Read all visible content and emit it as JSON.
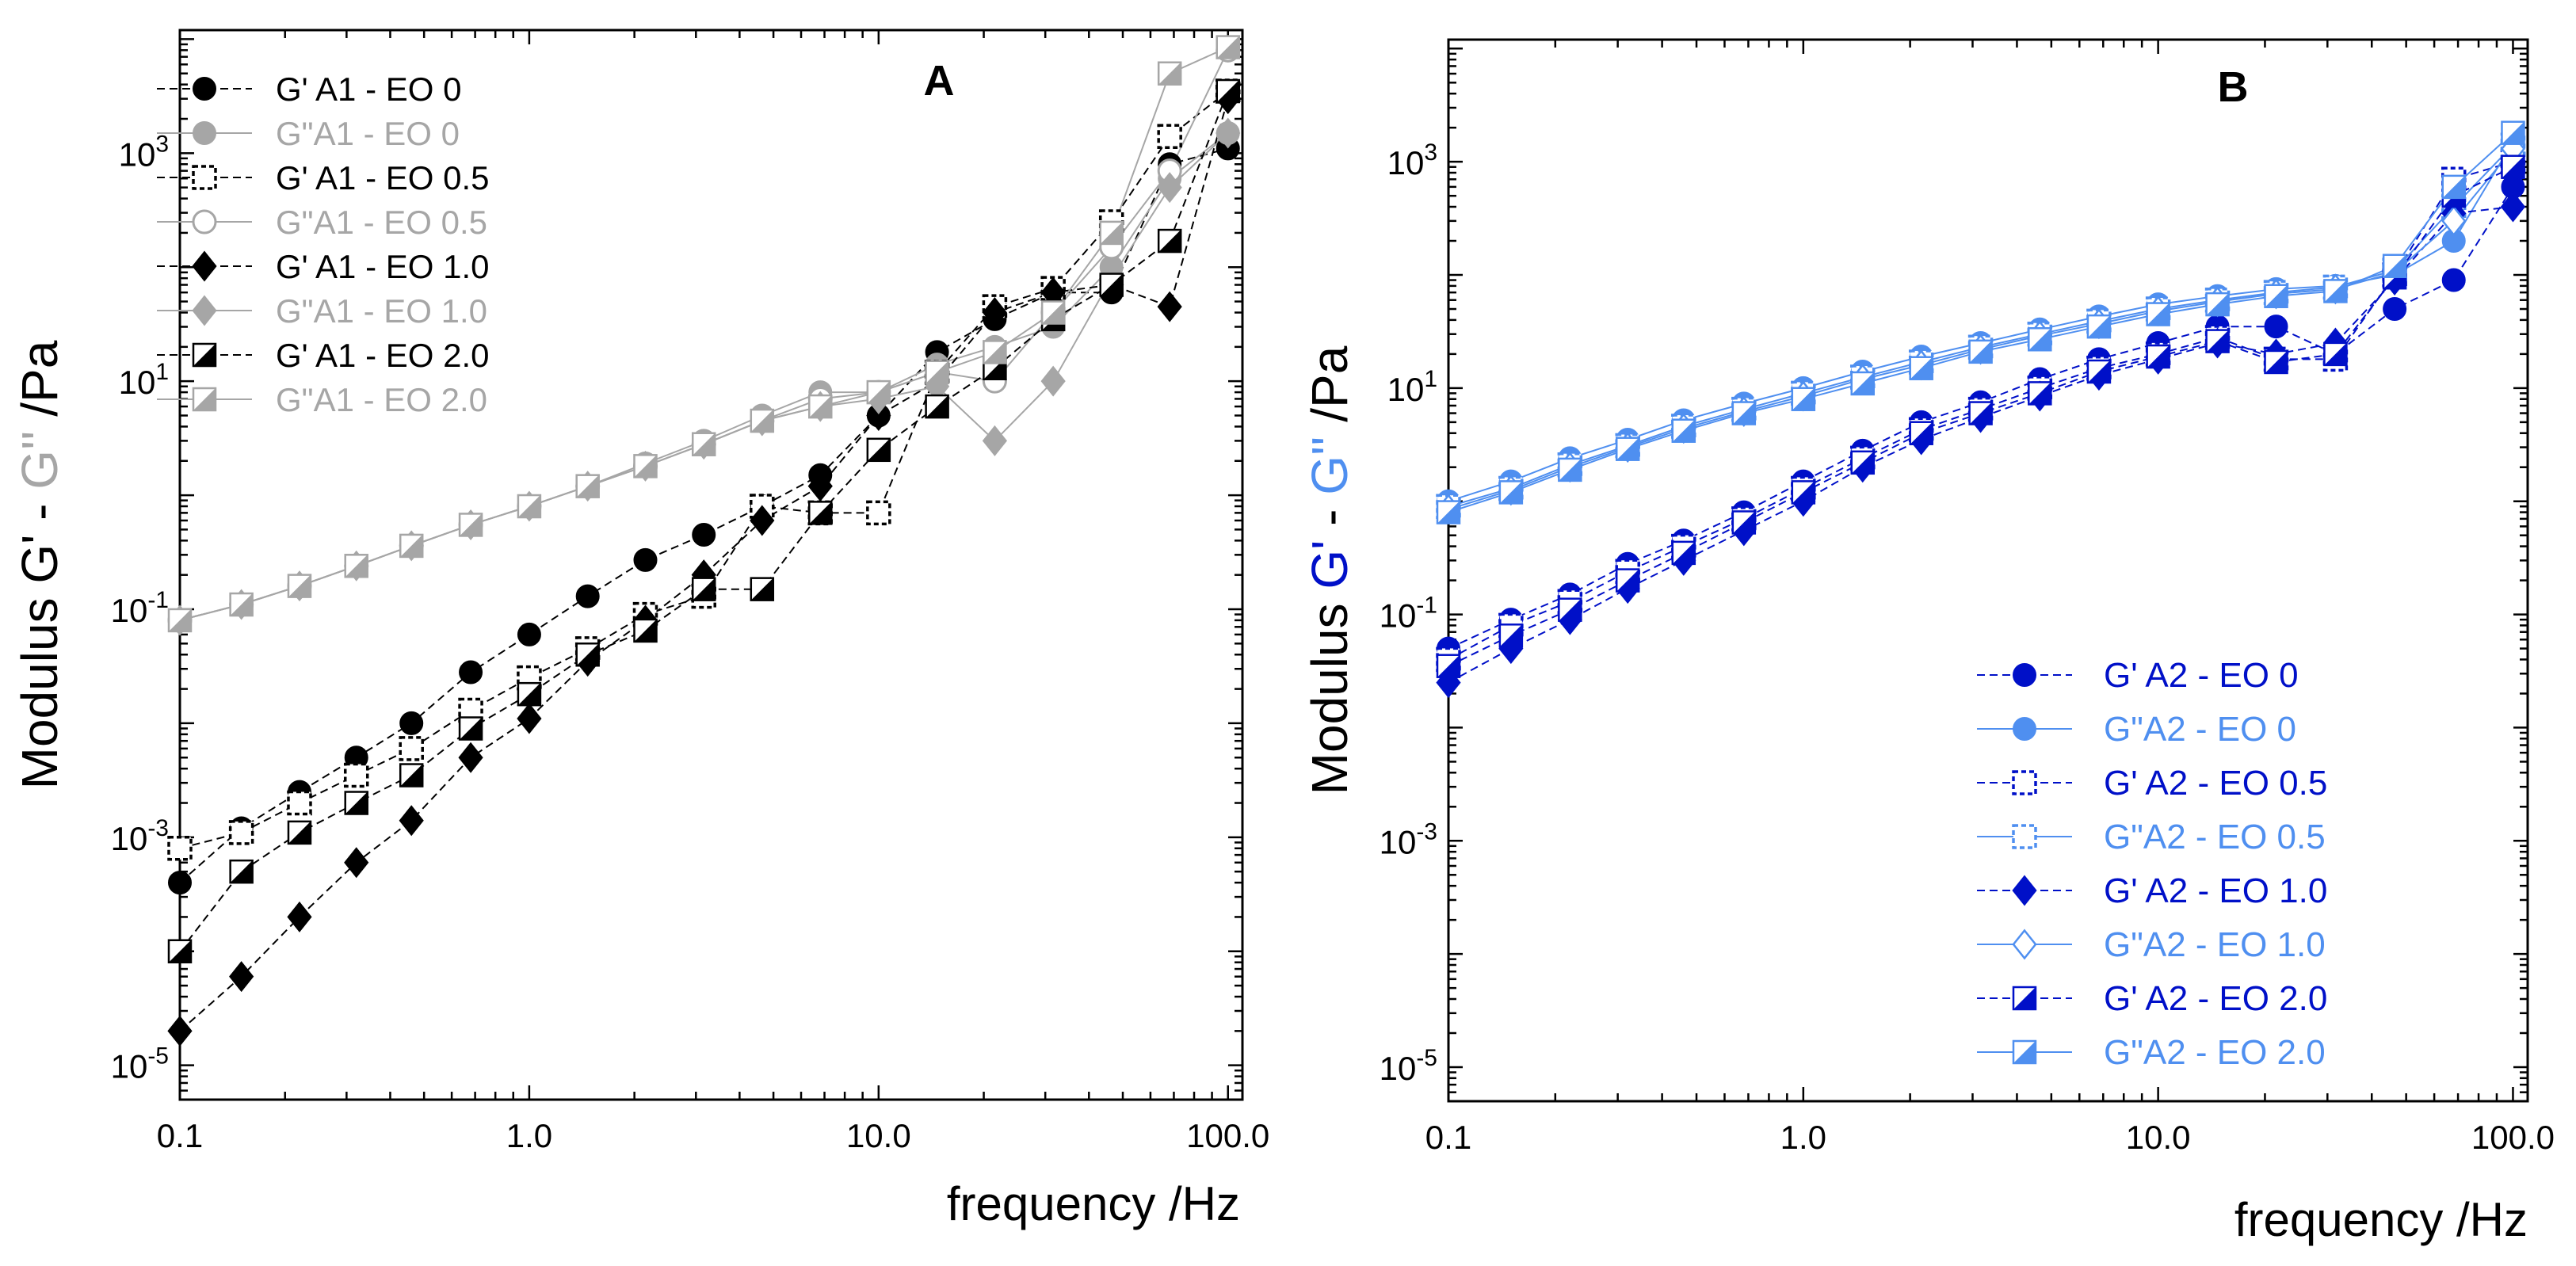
{
  "colors": {
    "black": "#000000",
    "gray": "#a6a6a6",
    "blue_dark": "#0010c8",
    "blue_light": "#4f8ff0"
  },
  "chart_data": [
    {
      "panel": "A",
      "type": "line",
      "scale": "log-log",
      "ylabel_parts": [
        "Modulus G'",
        " - ",
        "G''",
        " /Pa"
      ],
      "ylabel_colors": [
        "#000000",
        "#000000",
        "#a6a6a6",
        "#000000"
      ],
      "xlabel": "frequency /Hz",
      "xlim": [
        0.1,
        110
      ],
      "ylim": [
        5e-06,
        12000
      ],
      "x_ticks": [
        0.1,
        1,
        10,
        100
      ],
      "x_tick_labels": [
        "0.1",
        "1.0",
        "10.0",
        "100.0"
      ],
      "y_ticks": [
        1e-05,
        0.001,
        0.1,
        10,
        1000
      ],
      "y_tick_labels": [
        [
          "10",
          "-5"
        ],
        [
          "10",
          "-3"
        ],
        [
          "10",
          "-1"
        ],
        [
          "10",
          "1"
        ],
        [
          "10",
          "3"
        ]
      ],
      "legend_position": "top-left",
      "series": [
        {
          "name": "G' A1 - EO 0",
          "color": "#000000",
          "marker": "circle-filled",
          "dashed": true,
          "x": [
            0.1,
            0.15,
            0.22,
            0.32,
            0.46,
            0.68,
            1.0,
            1.47,
            2.15,
            3.16,
            4.64,
            6.81,
            10.0,
            14.7,
            21.5,
            31.6,
            46.4,
            68.1,
            100
          ],
          "y": [
            0.0004,
            0.0012,
            0.0025,
            0.005,
            0.01,
            0.028,
            0.06,
            0.13,
            0.27,
            0.45,
            0.8,
            1.5,
            5,
            18,
            35,
            60,
            60,
            800,
            1100
          ]
        },
        {
          "name": "G\"A1 - EO 0",
          "color": "#a6a6a6",
          "marker": "circle-filled",
          "dashed": false,
          "x": [
            0.1,
            0.15,
            0.22,
            0.32,
            0.46,
            0.68,
            1.0,
            1.47,
            2.15,
            3.16,
            4.64,
            6.81,
            10.0,
            14.7,
            21.5,
            31.6,
            46.4,
            68.1,
            100
          ],
          "y": [
            0.08,
            0.11,
            0.16,
            0.24,
            0.36,
            0.55,
            0.8,
            1.2,
            1.9,
            3,
            5,
            8,
            8,
            14,
            20,
            30,
            100,
            600,
            1500
          ]
        },
        {
          "name": "G' A1 - EO 0.5",
          "color": "#000000",
          "marker": "square-dashed",
          "dashed": true,
          "x": [
            0.1,
            0.15,
            0.22,
            0.32,
            0.46,
            0.68,
            1.0,
            1.47,
            2.15,
            3.16,
            4.64,
            6.81,
            10.0,
            14.7,
            21.5,
            31.6,
            46.4,
            68.1,
            100
          ],
          "y": [
            0.0008,
            0.0011,
            0.002,
            0.0035,
            0.006,
            0.013,
            0.025,
            0.045,
            0.09,
            0.13,
            0.8,
            0.7,
            0.7,
            12,
            45,
            65,
            250,
            1400,
            3500
          ]
        },
        {
          "name": "G\"A1 - EO 0.5",
          "color": "#a6a6a6",
          "marker": "circle-open",
          "dashed": false,
          "x": [
            0.1,
            0.15,
            0.22,
            0.32,
            0.46,
            0.68,
            1.0,
            1.47,
            2.15,
            3.16,
            4.64,
            6.81,
            10.0,
            14.7,
            21.5,
            31.6,
            46.4,
            68.1,
            100
          ],
          "y": [
            0.08,
            0.11,
            0.16,
            0.24,
            0.36,
            0.55,
            0.8,
            1.2,
            1.8,
            2.8,
            4.5,
            7,
            8,
            12,
            10,
            40,
            150,
            700,
            8000
          ]
        },
        {
          "name": "G' A1 - EO 1.0",
          "color": "#000000",
          "marker": "diamond-filled",
          "dashed": true,
          "x": [
            0.1,
            0.15,
            0.22,
            0.32,
            0.46,
            0.68,
            1.0,
            1.47,
            2.15,
            3.16,
            4.64,
            6.81,
            10.0,
            14.7,
            21.5,
            31.6,
            46.4,
            68.1,
            100
          ],
          "y": [
            2e-05,
            6e-05,
            0.0002,
            0.0006,
            0.0014,
            0.005,
            0.011,
            0.035,
            0.08,
            0.2,
            0.6,
            1.2,
            5,
            10,
            40,
            60,
            70,
            45,
            3000
          ]
        },
        {
          "name": "G\"A1 - EO 1.0",
          "color": "#a6a6a6",
          "marker": "diamond-filled",
          "dashed": false,
          "x": [
            0.1,
            0.15,
            0.22,
            0.32,
            0.46,
            0.68,
            1.0,
            1.47,
            2.15,
            3.16,
            4.64,
            6.81,
            10.0,
            14.7,
            21.5,
            31.6,
            46.4,
            68.1,
            100
          ],
          "y": [
            0.08,
            0.11,
            0.16,
            0.24,
            0.36,
            0.55,
            0.8,
            1.2,
            1.8,
            2.8,
            4.5,
            6,
            7,
            9,
            3,
            10,
            80,
            500,
            1500
          ]
        },
        {
          "name": "G' A1 - EO 2.0",
          "color": "#000000",
          "marker": "square-half",
          "dashed": true,
          "x": [
            0.1,
            0.15,
            0.22,
            0.32,
            0.46,
            0.68,
            1.0,
            1.47,
            2.15,
            3.16,
            4.64,
            6.81,
            10.0,
            14.7,
            21.5,
            31.6,
            46.4,
            68.1,
            100
          ],
          "y": [
            0.0001,
            0.0005,
            0.0011,
            0.002,
            0.0035,
            0.009,
            0.018,
            0.04,
            0.065,
            0.15,
            0.15,
            0.7,
            2.5,
            6,
            13,
            35,
            70,
            170,
            3500
          ]
        },
        {
          "name": "G\"A1 - EO 2.0",
          "color": "#a6a6a6",
          "marker": "square-half",
          "dashed": false,
          "x": [
            0.1,
            0.15,
            0.22,
            0.32,
            0.46,
            0.68,
            1.0,
            1.47,
            2.15,
            3.16,
            4.64,
            6.81,
            10.0,
            14.7,
            21.5,
            31.6,
            46.4,
            68.1,
            100
          ],
          "y": [
            0.08,
            0.11,
            0.16,
            0.24,
            0.36,
            0.55,
            0.8,
            1.2,
            1.8,
            2.8,
            4.5,
            6,
            8,
            12,
            18,
            40,
            200,
            5000,
            8500
          ]
        }
      ]
    },
    {
      "panel": "B",
      "type": "line",
      "scale": "log-log",
      "ylabel_parts": [
        "Modulus ",
        "G'",
        " - ",
        "G''",
        " /Pa"
      ],
      "ylabel_colors": [
        "#000000",
        "#0010c8",
        "#000000",
        "#4f8ff0",
        "#000000"
      ],
      "xlabel": "frequency /Hz",
      "xlim": [
        0.1,
        110
      ],
      "ylim": [
        5e-06,
        12000
      ],
      "x_ticks": [
        0.1,
        1,
        10,
        100
      ],
      "x_tick_labels": [
        "0.1",
        "1.0",
        "10.0",
        "100.0"
      ],
      "y_ticks": [
        1e-05,
        0.001,
        0.1,
        10,
        1000
      ],
      "y_tick_labels": [
        [
          "10",
          "-5"
        ],
        [
          "10",
          "-3"
        ],
        [
          "10",
          "-1"
        ],
        [
          "10",
          "1"
        ],
        [
          "10",
          "3"
        ]
      ],
      "legend_position": "bottom-right",
      "series": [
        {
          "name": "G' A2 - EO 0",
          "color": "#0010c8",
          "marker": "circle-filled",
          "dashed": true,
          "x": [
            0.1,
            0.15,
            0.22,
            0.32,
            0.46,
            0.68,
            1.0,
            1.47,
            2.15,
            3.16,
            4.64,
            6.81,
            10.0,
            14.7,
            21.5,
            31.6,
            46.4,
            68.1,
            100
          ],
          "y": [
            0.05,
            0.09,
            0.15,
            0.28,
            0.45,
            0.8,
            1.5,
            2.8,
            5,
            7.5,
            12,
            18,
            25,
            35,
            35,
            20,
            50,
            90,
            600
          ]
        },
        {
          "name": "G\"A2 - EO 0",
          "color": "#4f8ff0",
          "marker": "circle-filled",
          "dashed": false,
          "x": [
            0.1,
            0.15,
            0.22,
            0.32,
            0.46,
            0.68,
            1.0,
            1.47,
            2.15,
            3.16,
            4.64,
            6.81,
            10.0,
            14.7,
            21.5,
            31.6,
            46.4,
            68.1,
            100
          ],
          "y": [
            1.0,
            1.5,
            2.4,
            3.5,
            5.2,
            7.3,
            10,
            14,
            19,
            25,
            33,
            43,
            55,
            65,
            75,
            80,
            100,
            200,
            1500
          ]
        },
        {
          "name": "G' A2 - EO 0.5",
          "color": "#0010c8",
          "marker": "square-dashed",
          "dashed": true,
          "x": [
            0.1,
            0.15,
            0.22,
            0.32,
            0.46,
            0.68,
            1.0,
            1.47,
            2.15,
            3.16,
            4.64,
            6.81,
            10.0,
            14.7,
            21.5,
            31.6,
            46.4,
            68.1,
            100
          ],
          "y": [
            0.04,
            0.08,
            0.13,
            0.24,
            0.4,
            0.7,
            1.3,
            2.4,
            4.3,
            6.5,
            10,
            15,
            20,
            28,
            18,
            18,
            100,
            700,
            1000
          ]
        },
        {
          "name": "G\"A2 - EO 0.5",
          "color": "#4f8ff0",
          "marker": "square-dashed",
          "dashed": false,
          "x": [
            0.1,
            0.15,
            0.22,
            0.32,
            0.46,
            0.68,
            1.0,
            1.47,
            2.15,
            3.16,
            4.64,
            6.81,
            10.0,
            14.7,
            21.5,
            31.6,
            46.4,
            68.1,
            100
          ],
          "y": [
            0.9,
            1.3,
            2.1,
            3.1,
            4.6,
            6.5,
            9,
            12.5,
            17,
            23,
            30,
            39,
            50,
            60,
            70,
            78,
            110,
            400,
            1400
          ]
        },
        {
          "name": "G' A2 - EO 1.0",
          "color": "#0010c8",
          "marker": "diamond-filled",
          "dashed": true,
          "x": [
            0.1,
            0.15,
            0.22,
            0.32,
            0.46,
            0.68,
            1.0,
            1.47,
            2.15,
            3.16,
            4.64,
            6.81,
            10.0,
            14.7,
            21.5,
            31.6,
            46.4,
            68.1,
            100
          ],
          "y": [
            0.025,
            0.05,
            0.09,
            0.17,
            0.3,
            0.55,
            1.0,
            2,
            3.5,
            5.5,
            8.5,
            13,
            18,
            25,
            20,
            25,
            90,
            350,
            400
          ]
        },
        {
          "name": "G\"A2 - EO 1.0",
          "color": "#4f8ff0",
          "marker": "diamond-open",
          "dashed": false,
          "x": [
            0.1,
            0.15,
            0.22,
            0.32,
            0.46,
            0.68,
            1.0,
            1.47,
            2.15,
            3.16,
            4.64,
            6.81,
            10.0,
            14.7,
            21.5,
            31.6,
            46.4,
            68.1,
            100
          ],
          "y": [
            0.85,
            1.25,
            2,
            3,
            4.4,
            6.2,
            8.5,
            12,
            16,
            22,
            29,
            37,
            48,
            58,
            68,
            75,
            105,
            300,
            1300
          ]
        },
        {
          "name": "G' A2 - EO 2.0",
          "color": "#0010c8",
          "marker": "square-half",
          "dashed": true,
          "x": [
            0.1,
            0.15,
            0.22,
            0.32,
            0.46,
            0.68,
            1.0,
            1.47,
            2.15,
            3.16,
            4.64,
            6.81,
            10.0,
            14.7,
            21.5,
            31.6,
            46.4,
            68.1,
            100
          ],
          "y": [
            0.035,
            0.065,
            0.11,
            0.2,
            0.35,
            0.65,
            1.2,
            2.2,
            4,
            6,
            9,
            14,
            19,
            26,
            17,
            20,
            95,
            500,
            900
          ]
        },
        {
          "name": "G\"A2 - EO 2.0",
          "color": "#4f8ff0",
          "marker": "square-half",
          "dashed": false,
          "x": [
            0.1,
            0.15,
            0.22,
            0.32,
            0.46,
            0.68,
            1.0,
            1.47,
            2.15,
            3.16,
            4.64,
            6.81,
            10.0,
            14.7,
            21.5,
            31.6,
            46.4,
            68.1,
            100
          ],
          "y": [
            0.8,
            1.2,
            1.9,
            2.9,
            4.2,
            6,
            8,
            11,
            15,
            21,
            27,
            35,
            45,
            55,
            65,
            72,
            120,
            600,
            1800
          ]
        }
      ]
    }
  ]
}
